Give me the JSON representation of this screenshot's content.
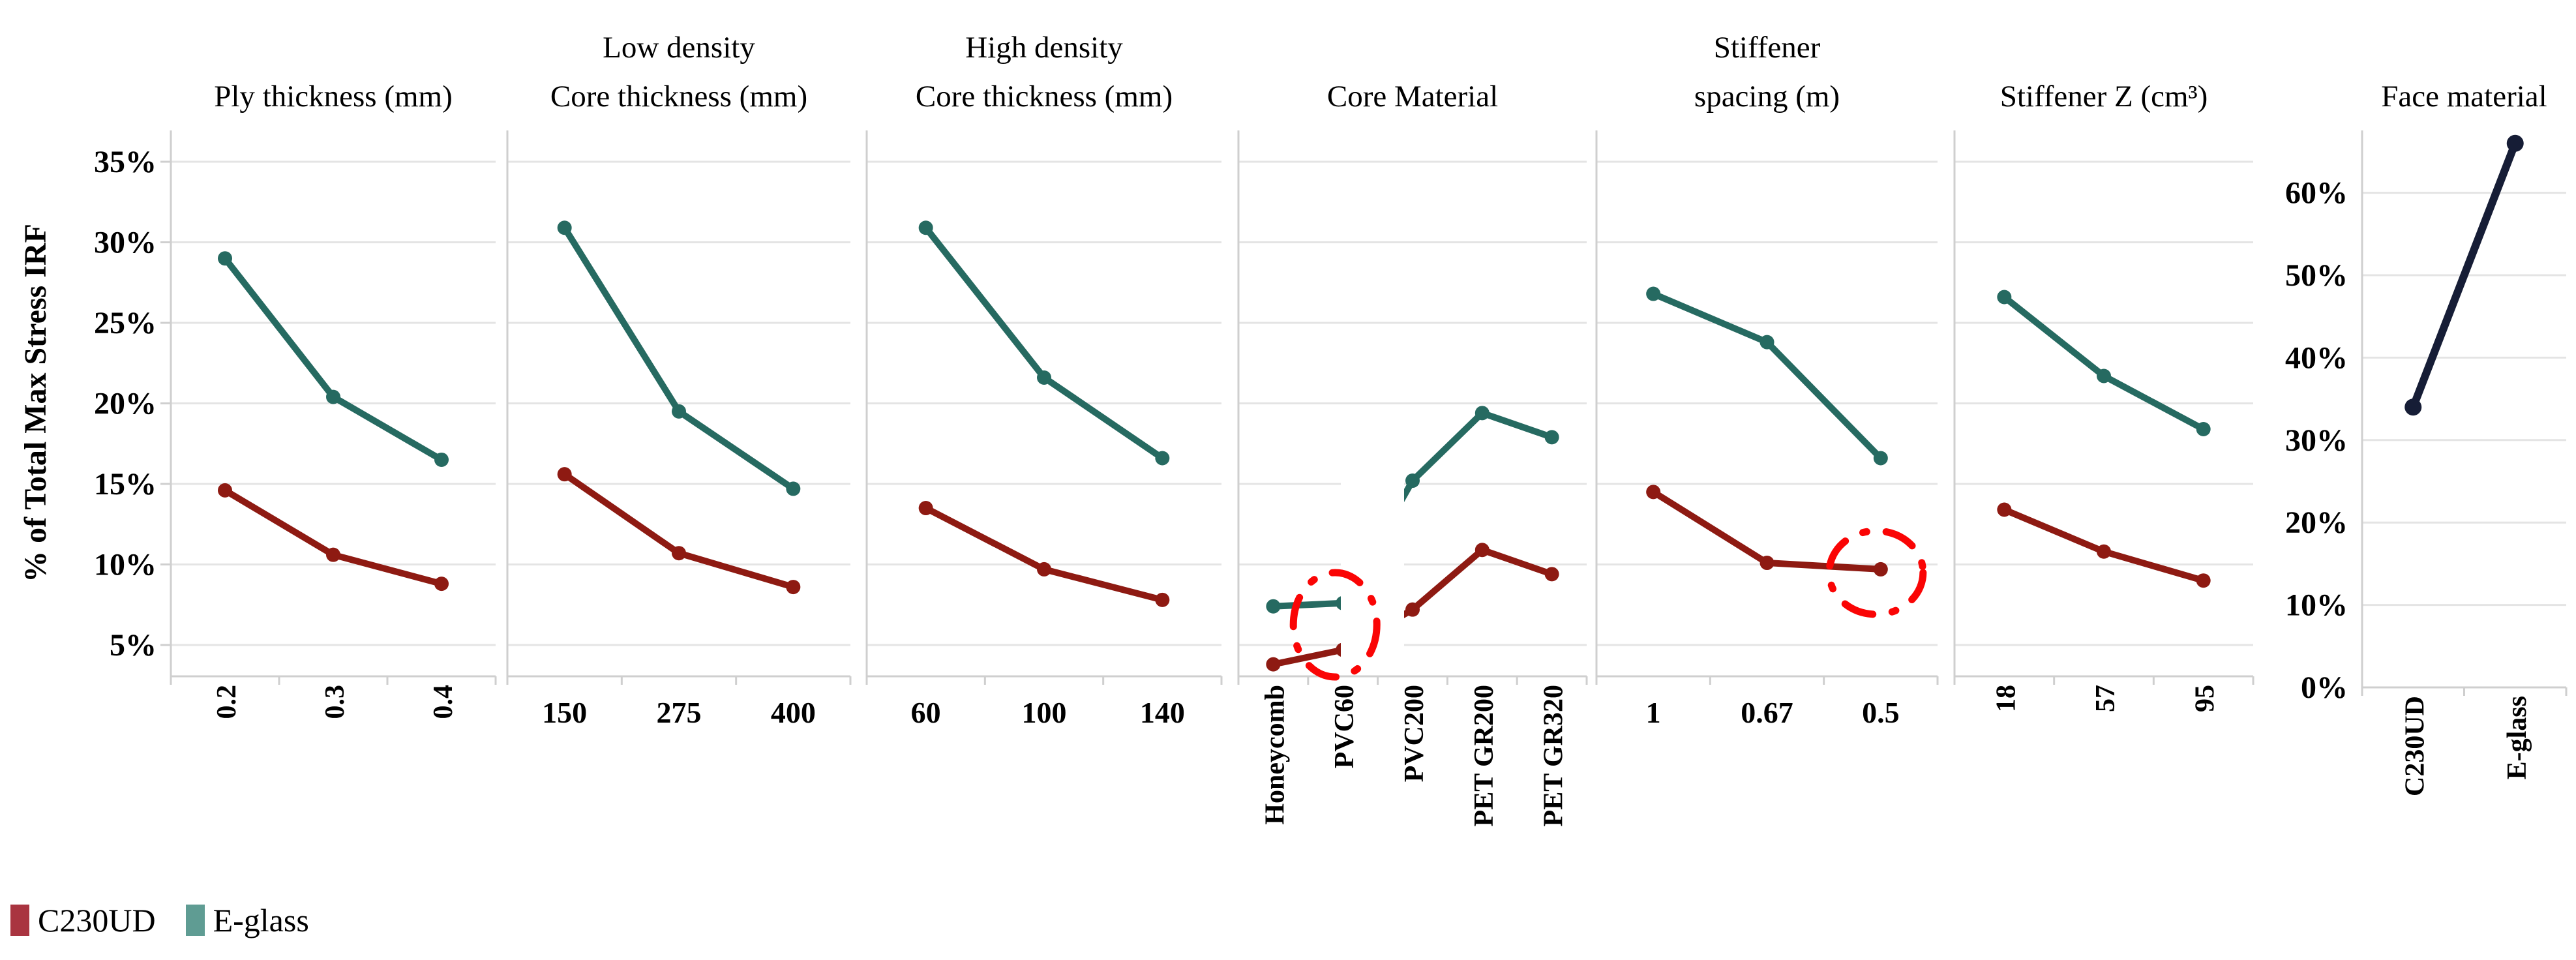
{
  "figure": {
    "y_axis": {
      "title": "% of Total Max Stress IRF",
      "tick_labels": [
        "35%",
        "30%",
        "25%",
        "20%",
        "15%",
        "10%",
        "5%"
      ],
      "min": 5,
      "max": 35,
      "step": 5,
      "unit": "%"
    },
    "secondary_y_axis": {
      "tick_labels": [
        "60%",
        "50%",
        "40%",
        "30%",
        "20%",
        "10%",
        "0%"
      ],
      "min": 0,
      "max": 60,
      "step": 10,
      "unit": "%"
    },
    "legend": [
      {
        "label": "C230UD",
        "color": "#a93440"
      },
      {
        "label": "E-glass",
        "color": "#5f9c93"
      }
    ],
    "colors": {
      "c230ud_line": "#8e1a12",
      "eglass_line": "#266a61",
      "face_line": "#161d36",
      "gridline": "#e4e4e4",
      "axis": "#cfcfcf",
      "annotation": "#fa0505",
      "background": "#ffffff"
    },
    "annotations": [
      {
        "type": "white-occlusion",
        "chart_index": 3,
        "between_categories": [
          "PVC60",
          "PVC200"
        ],
        "description": "white patch partially hiding line segments between PVC60 and PVC200"
      },
      {
        "type": "highlight-ellipse",
        "chart_index": 3,
        "target_category": "PVC60",
        "style": "red dash-dot ellipse"
      },
      {
        "type": "highlight-ellipse",
        "chart_index": 4,
        "target_category": "0.5",
        "target_series": "C230UD",
        "style": "red dash-dot ellipse"
      }
    ]
  },
  "chart_data": [
    {
      "type": "line",
      "name": "ply-thickness",
      "title": "Ply thickness (mm)",
      "categories": [
        "0.2",
        "0.3",
        "0.4"
      ],
      "x_labels_rotated": true,
      "axis": "primary",
      "ylim": [
        5,
        35
      ],
      "series": [
        {
          "name": "C230UD",
          "values": [
            14.6,
            10.6,
            8.8
          ]
        },
        {
          "name": "E-glass",
          "values": [
            29.0,
            20.4,
            16.5
          ]
        }
      ]
    },
    {
      "type": "line",
      "name": "core-thickness-low-density",
      "title_line1": "Low density",
      "title": "Core thickness (mm)",
      "categories": [
        "150",
        "275",
        "400"
      ],
      "x_labels_rotated": false,
      "axis": "primary",
      "ylim": [
        5,
        35
      ],
      "series": [
        {
          "name": "C230UD",
          "values": [
            15.6,
            10.7,
            8.6
          ]
        },
        {
          "name": "E-glass",
          "values": [
            30.9,
            19.5,
            14.7
          ]
        }
      ]
    },
    {
      "type": "line",
      "name": "core-thickness-high-density",
      "title_line1": "High density",
      "title": "Core thickness (mm)",
      "categories": [
        "60",
        "100",
        "140"
      ],
      "x_labels_rotated": false,
      "axis": "primary",
      "ylim": [
        5,
        35
      ],
      "series": [
        {
          "name": "C230UD",
          "values": [
            13.5,
            9.7,
            7.8
          ]
        },
        {
          "name": "E-glass",
          "values": [
            30.9,
            21.6,
            16.6
          ]
        }
      ]
    },
    {
      "type": "line",
      "name": "core-material",
      "title": "Core Material",
      "categories": [
        "Honeycomb",
        "PVC60",
        "PVC200",
        "PET GR200",
        "PET GR320"
      ],
      "x_labels_rotated": true,
      "axis": "primary",
      "ylim": [
        5,
        35
      ],
      "series": [
        {
          "name": "C230UD",
          "values": [
            3.8,
            4.7,
            7.2,
            10.9,
            9.4
          ]
        },
        {
          "name": "E-glass",
          "values": [
            7.4,
            7.6,
            15.2,
            19.4,
            17.9
          ]
        }
      ]
    },
    {
      "type": "line",
      "name": "stiffener-spacing",
      "title_line1": "Stiffener",
      "title": "spacing (m)",
      "categories": [
        "1",
        "0.67",
        "0.5"
      ],
      "x_labels_rotated": false,
      "axis": "primary",
      "ylim": [
        5,
        35
      ],
      "series": [
        {
          "name": "C230UD",
          "values": [
            14.5,
            10.1,
            9.7
          ]
        },
        {
          "name": "E-glass",
          "values": [
            26.8,
            23.8,
            16.6
          ]
        }
      ]
    },
    {
      "type": "line",
      "name": "stiffener-z",
      "title": "Stiffener Z (cm³)",
      "categories": [
        "18",
        "57",
        "95"
      ],
      "x_labels_rotated": true,
      "axis": "primary",
      "ylim": [
        5,
        35
      ],
      "series": [
        {
          "name": "C230UD",
          "values": [
            13.4,
            10.8,
            9.0
          ]
        },
        {
          "name": "E-glass",
          "values": [
            26.6,
            21.7,
            18.4
          ]
        }
      ]
    },
    {
      "type": "line",
      "name": "face-material",
      "title": "Face material",
      "categories": [
        "C230UD",
        "E-glass"
      ],
      "x_labels_rotated": true,
      "axis": "secondary",
      "ylim": [
        0,
        60
      ],
      "series": [
        {
          "name": "Face",
          "values": [
            34,
            66
          ]
        }
      ]
    }
  ]
}
